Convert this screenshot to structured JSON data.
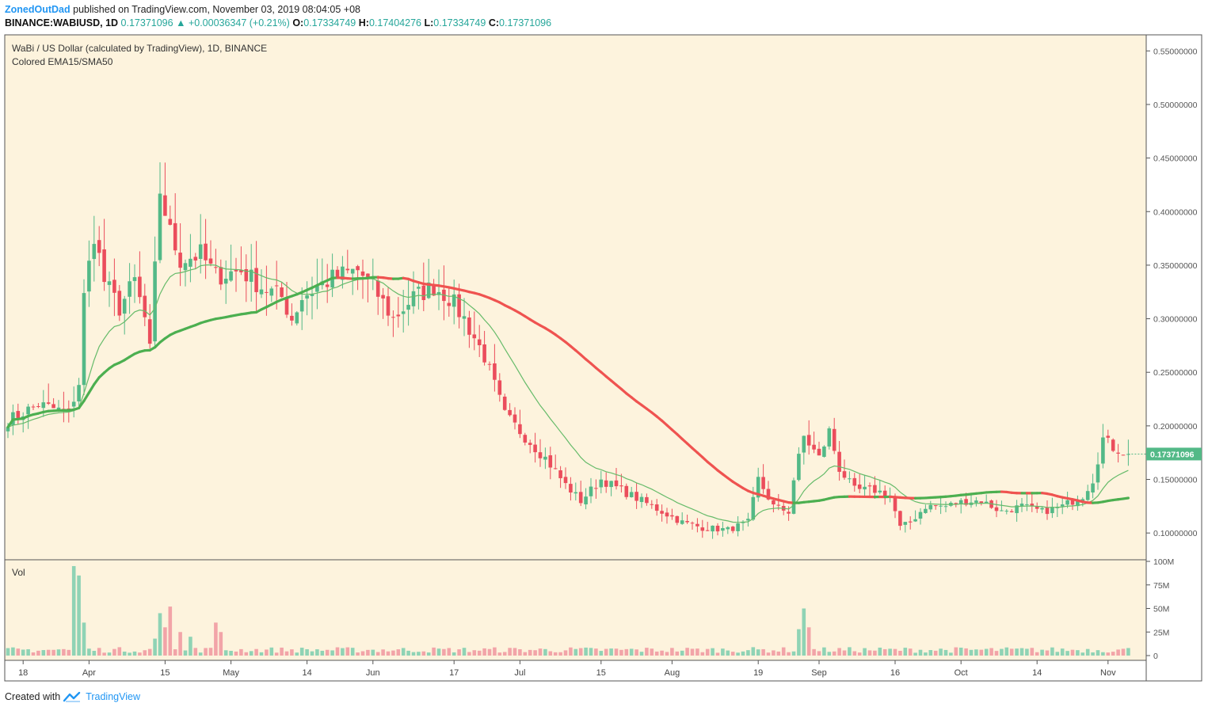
{
  "header": {
    "author": "ZonedOutDad",
    "published": "published on TradingView.com, November 03, 2019 08:04:05 +08",
    "symbol": "BINANCE:WABIUSD, 1D",
    "last": "0.17371096",
    "change": "+0.00036347 (+0.21%)",
    "o_label": "O:",
    "o": "0.17334749",
    "h_label": "H:",
    "h": "0.17404276",
    "l_label": "L:",
    "l": "0.17334749",
    "c_label": "C:",
    "c": "0.17371096"
  },
  "legend": {
    "title": "WaBi / US Dollar (calculated by TradingView), 1D, BINANCE",
    "indicator": "Colored EMA15/SMA50",
    "vol": "Vol"
  },
  "footer": {
    "created": "Created with",
    "brand": "TradingView"
  },
  "colors": {
    "background": "#fdf3dd",
    "up": "#53b987",
    "down": "#eb4d5c",
    "vol_up": "#8fd3b5",
    "vol_down": "#f2a4a8",
    "sma_up": "#4caf50",
    "sma_down": "#ef5350",
    "ema": "#66bb6a",
    "price_tag": "#53b987"
  },
  "chart_data": {
    "type": "candlestick",
    "price_axis": {
      "ticks": [
        "0.55000000",
        "0.50000000",
        "0.45000000",
        "0.40000000",
        "0.35000000",
        "0.30000000",
        "0.25000000",
        "0.20000000",
        "0.15000000",
        "0.10000000"
      ],
      "tick_values": [
        0.55,
        0.5,
        0.45,
        0.4,
        0.35,
        0.3,
        0.25,
        0.2,
        0.15,
        0.1
      ],
      "range": [
        0.075,
        0.565
      ],
      "current_label": "0.17371096",
      "current_value": 0.17371096
    },
    "volume_axis": {
      "ticks": [
        "100M",
        "75M",
        "50M",
        "25M",
        "0"
      ],
      "tick_values": [
        100,
        75,
        50,
        25,
        0
      ],
      "range": [
        0,
        100
      ]
    },
    "x_axis": {
      "labels": [
        "18",
        "Apr",
        "15",
        "May",
        "14",
        "Jun",
        "17",
        "Jul",
        "15",
        "Aug",
        "19",
        "Sep",
        "16",
        "Oct",
        "14",
        "Nov"
      ],
      "label_bars": [
        3,
        16,
        31,
        44,
        59,
        72,
        88,
        101,
        117,
        131,
        148,
        160,
        175,
        188,
        203,
        217
      ],
      "bar_count": 222
    },
    "series": [
      {
        "name": "EMA15",
        "color": "#66bb6a"
      },
      {
        "name": "SMA50",
        "color": "#4caf50",
        "color_down": "#ef5350"
      }
    ],
    "candle_keyframes": [
      [
        0,
        0.205
      ],
      [
        6,
        0.22
      ],
      [
        12,
        0.212
      ],
      [
        14,
        0.24
      ],
      [
        15,
        0.32
      ],
      [
        17,
        0.38
      ],
      [
        19,
        0.335
      ],
      [
        22,
        0.31
      ],
      [
        25,
        0.335
      ],
      [
        27,
        0.3
      ],
      [
        28,
        0.27
      ],
      [
        30,
        0.42
      ],
      [
        31,
        0.4
      ],
      [
        32,
        0.38
      ],
      [
        34,
        0.355
      ],
      [
        38,
        0.36
      ],
      [
        41,
        0.34
      ],
      [
        46,
        0.345
      ],
      [
        50,
        0.33
      ],
      [
        54,
        0.32
      ],
      [
        56,
        0.3
      ],
      [
        58,
        0.32
      ],
      [
        61,
        0.33
      ],
      [
        65,
        0.34
      ],
      [
        69,
        0.345
      ],
      [
        72,
        0.33
      ],
      [
        76,
        0.3
      ],
      [
        80,
        0.32
      ],
      [
        84,
        0.33
      ],
      [
        87,
        0.32
      ],
      [
        90,
        0.3
      ],
      [
        94,
        0.265
      ],
      [
        98,
        0.21
      ],
      [
        102,
        0.19
      ],
      [
        106,
        0.17
      ],
      [
        110,
        0.145
      ],
      [
        113,
        0.13
      ],
      [
        117,
        0.15
      ],
      [
        121,
        0.14
      ],
      [
        125,
        0.13
      ],
      [
        129,
        0.12
      ],
      [
        133,
        0.11
      ],
      [
        137,
        0.105
      ],
      [
        142,
        0.103
      ],
      [
        146,
        0.11
      ],
      [
        148,
        0.15
      ],
      [
        151,
        0.125
      ],
      [
        154,
        0.12
      ],
      [
        155,
        0.15
      ],
      [
        157,
        0.19
      ],
      [
        160,
        0.17
      ],
      [
        162,
        0.195
      ],
      [
        164,
        0.16
      ],
      [
        167,
        0.14
      ],
      [
        171,
        0.14
      ],
      [
        174,
        0.135
      ],
      [
        176,
        0.105
      ],
      [
        178,
        0.11
      ],
      [
        181,
        0.125
      ],
      [
        185,
        0.125
      ],
      [
        189,
        0.13
      ],
      [
        192,
        0.13
      ],
      [
        196,
        0.12
      ],
      [
        200,
        0.125
      ],
      [
        204,
        0.12
      ],
      [
        208,
        0.125
      ],
      [
        212,
        0.135
      ],
      [
        214,
        0.15
      ],
      [
        216,
        0.188
      ],
      [
        218,
        0.18
      ],
      [
        221,
        0.174
      ]
    ],
    "volume_spikes": [
      [
        13,
        95
      ],
      [
        14,
        85
      ],
      [
        15,
        35
      ],
      [
        29,
        18
      ],
      [
        30,
        45
      ],
      [
        31,
        30
      ],
      [
        32,
        52
      ],
      [
        34,
        25
      ],
      [
        36,
        20
      ],
      [
        41,
        35
      ],
      [
        42,
        25
      ],
      [
        156,
        28
      ],
      [
        157,
        50
      ],
      [
        158,
        30
      ]
    ],
    "last_close": 0.17371096
  }
}
